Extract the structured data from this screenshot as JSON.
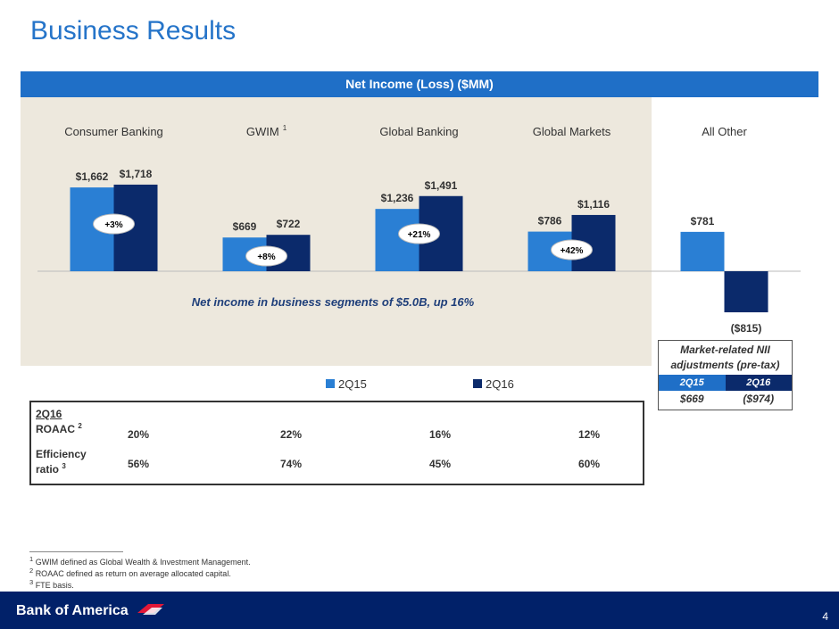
{
  "title": "Business Results",
  "chart_header": "Net Income (Loss) ($MM)",
  "chart_data": {
    "type": "bar",
    "categories": [
      "Consumer Banking",
      "GWIM",
      "Global Banking",
      "Global Markets",
      "All Other"
    ],
    "category_superscripts": [
      "",
      "1",
      "",
      "",
      ""
    ],
    "series": [
      {
        "name": "2Q15",
        "values": [
          1662,
          669,
          1236,
          786,
          781
        ],
        "labels": [
          "$1,662",
          "$669",
          "$1,236",
          "$786",
          "$781"
        ],
        "color": "#2a7fd4"
      },
      {
        "name": "2Q16",
        "values": [
          1718,
          722,
          1491,
          1116,
          -815
        ],
        "labels": [
          "$1,718",
          "$722",
          "$1,491",
          "$1,116",
          "($815)"
        ],
        "color": "#0b2a6b"
      }
    ],
    "changes": [
      "+3%",
      "+8%",
      "+21%",
      "+42%",
      ""
    ],
    "annotation": "Net income in business segments of $5.0B, up 16%",
    "legend_position": "bottom"
  },
  "market_box": {
    "caption_line1": "Market-related NII",
    "caption_line2": "adjustments (pre-tax)",
    "headers": [
      "2Q15",
      "2Q16"
    ],
    "values": [
      "$669",
      "($974)"
    ],
    "header_colors": [
      "#1f6fc7",
      "#0b2a6b"
    ]
  },
  "metrics": {
    "period": "2Q16",
    "roaac_label": "ROAAC",
    "roaac_sup": "2",
    "roaac": [
      "20%",
      "22%",
      "16%",
      "12%"
    ],
    "eff_label_line1": "Efficiency",
    "eff_label_line2": "ratio",
    "eff_sup": "3",
    "efficiency": [
      "56%",
      "74%",
      "45%",
      "60%"
    ]
  },
  "footnotes": [
    {
      "sup": "1",
      "text": "GWIM defined as Global Wealth & Investment Management."
    },
    {
      "sup": "2",
      "text": "ROAAC defined as return on average allocated capital."
    },
    {
      "sup": "3",
      "text": "FTE basis."
    }
  ],
  "footer": {
    "logo": "Bank of America",
    "page": "4"
  },
  "colors": {
    "accent": "#2574c9",
    "navy": "#012169",
    "panel": "#ede8dd"
  }
}
